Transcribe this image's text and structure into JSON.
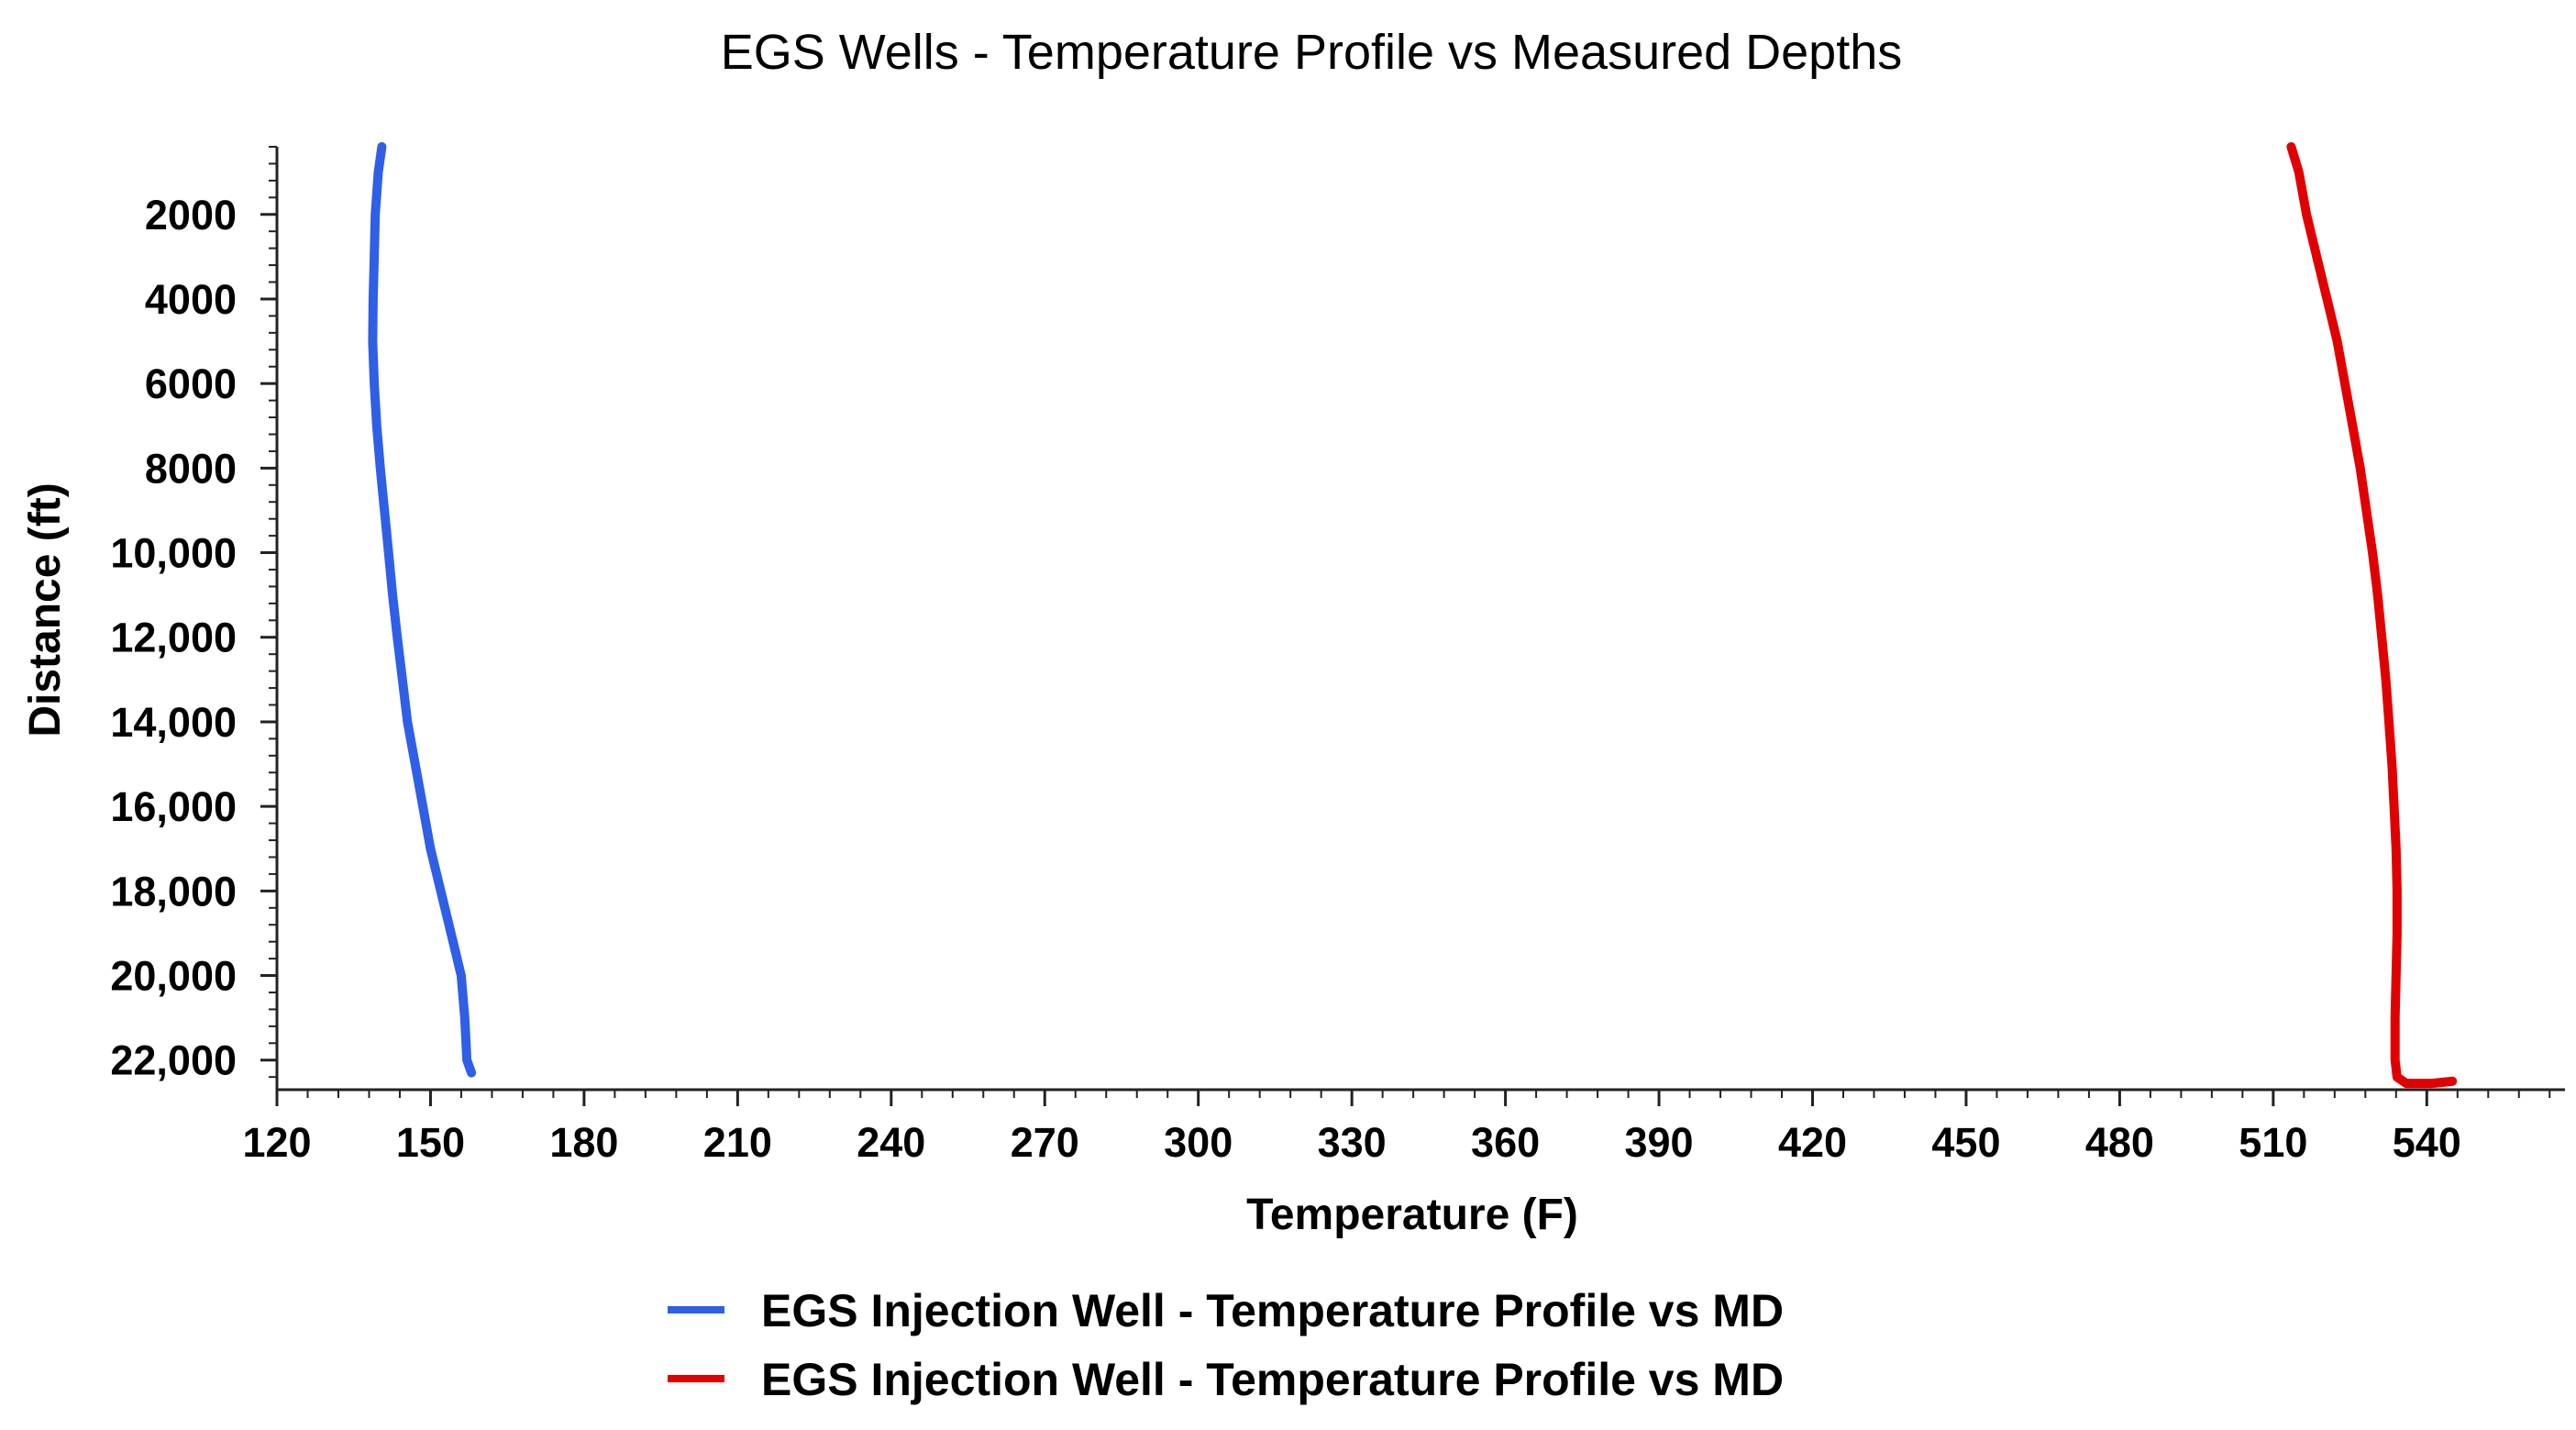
{
  "chart_data": {
    "type": "line",
    "title": "EGS Wells - Temperature Profile vs Measured Depths",
    "xlabel": "Temperature (F)",
    "ylabel": "Distance (ft)",
    "xlim": [
      120,
      567
    ],
    "ylim": [
      22700,
      400
    ],
    "y_inverted": true,
    "grid": false,
    "legend_position": "bottom-center",
    "x_ticks": [
      120,
      150,
      180,
      210,
      240,
      270,
      300,
      330,
      360,
      390,
      420,
      450,
      480,
      510,
      540
    ],
    "x_tick_labels": [
      "120",
      "150",
      "180",
      "210",
      "240",
      "270",
      "300",
      "330",
      "360",
      "390",
      "420",
      "450",
      "480",
      "510",
      "540"
    ],
    "y_ticks": [
      2000,
      4000,
      6000,
      8000,
      10000,
      12000,
      14000,
      16000,
      18000,
      20000,
      22000
    ],
    "y_tick_labels": [
      "2000",
      "4000",
      "6000",
      "8000",
      "10,000",
      "12,000",
      "14,000",
      "16,000",
      "18,000",
      "20,000",
      "22,000"
    ],
    "series": [
      {
        "name": "EGS Injection Well - Temperature Profile vs MD",
        "color": "#2f5fe6",
        "points": [
          {
            "x": 140.5,
            "y": 400
          },
          {
            "x": 139.8,
            "y": 1000
          },
          {
            "x": 139.2,
            "y": 2000
          },
          {
            "x": 139.0,
            "y": 3000
          },
          {
            "x": 138.8,
            "y": 4000
          },
          {
            "x": 138.7,
            "y": 5000
          },
          {
            "x": 139.0,
            "y": 6000
          },
          {
            "x": 139.5,
            "y": 7000
          },
          {
            "x": 140.2,
            "y": 8000
          },
          {
            "x": 141.0,
            "y": 9000
          },
          {
            "x": 141.8,
            "y": 10000
          },
          {
            "x": 142.6,
            "y": 11000
          },
          {
            "x": 143.5,
            "y": 12000
          },
          {
            "x": 144.5,
            "y": 13000
          },
          {
            "x": 145.5,
            "y": 14000
          },
          {
            "x": 147.0,
            "y": 15000
          },
          {
            "x": 148.5,
            "y": 16000
          },
          {
            "x": 150.0,
            "y": 17000
          },
          {
            "x": 152.0,
            "y": 18000
          },
          {
            "x": 154.0,
            "y": 19000
          },
          {
            "x": 156.0,
            "y": 20000
          },
          {
            "x": 156.7,
            "y": 21000
          },
          {
            "x": 157.1,
            "y": 22000
          },
          {
            "x": 158.0,
            "y": 22300
          }
        ]
      },
      {
        "name": "EGS Injection Well - Temperature Profile vs MD",
        "color": "#e00000",
        "points": [
          {
            "x": 513.5,
            "y": 400
          },
          {
            "x": 515.0,
            "y": 1000
          },
          {
            "x": 516.5,
            "y": 2000
          },
          {
            "x": 518.5,
            "y": 3000
          },
          {
            "x": 520.5,
            "y": 4000
          },
          {
            "x": 522.5,
            "y": 5000
          },
          {
            "x": 524.0,
            "y": 6000
          },
          {
            "x": 525.5,
            "y": 7000
          },
          {
            "x": 527.0,
            "y": 8000
          },
          {
            "x": 528.2,
            "y": 9000
          },
          {
            "x": 529.4,
            "y": 10000
          },
          {
            "x": 530.4,
            "y": 11000
          },
          {
            "x": 531.2,
            "y": 12000
          },
          {
            "x": 532.0,
            "y": 13000
          },
          {
            "x": 532.6,
            "y": 14000
          },
          {
            "x": 533.2,
            "y": 15000
          },
          {
            "x": 533.6,
            "y": 16000
          },
          {
            "x": 534.0,
            "y": 17000
          },
          {
            "x": 534.2,
            "y": 18000
          },
          {
            "x": 534.2,
            "y": 19000
          },
          {
            "x": 534.0,
            "y": 20000
          },
          {
            "x": 533.8,
            "y": 21000
          },
          {
            "x": 533.8,
            "y": 22000
          },
          {
            "x": 534.2,
            "y": 22400
          },
          {
            "x": 536.0,
            "y": 22550
          },
          {
            "x": 541.0,
            "y": 22550
          },
          {
            "x": 545.0,
            "y": 22500
          }
        ]
      }
    ]
  }
}
